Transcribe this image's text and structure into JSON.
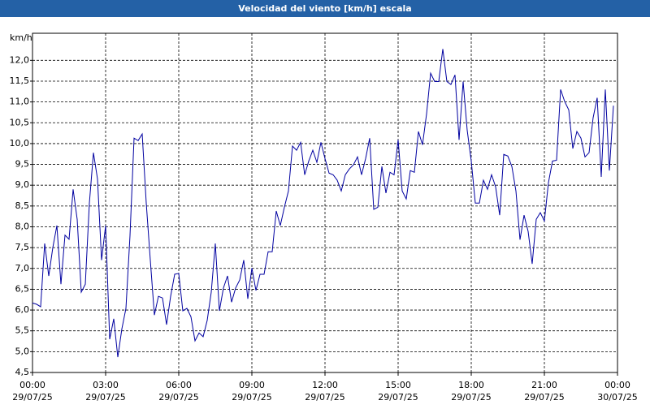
{
  "chart_data": {
    "type": "line",
    "title": "Velocidad del viento [km/h] escala",
    "y_unit": "km/h",
    "color": "#0000a0",
    "grid": true,
    "xlim": [
      0,
      1440
    ],
    "ylim": [
      4.5,
      12.65
    ],
    "xticks": [
      {
        "value": 0,
        "label": "00:00"
      },
      {
        "value": 180,
        "label": "03:00"
      },
      {
        "value": 360,
        "label": "06:00"
      },
      {
        "value": 540,
        "label": "09:00"
      },
      {
        "value": 720,
        "label": "12:00"
      },
      {
        "value": 900,
        "label": "15:00"
      },
      {
        "value": 1080,
        "label": "18:00"
      },
      {
        "value": 1260,
        "label": "21:00"
      },
      {
        "value": 1440,
        "label": "00:00"
      }
    ],
    "xtick_dates": [
      "29/07/25",
      "29/07/25",
      "29/07/25",
      "29/07/25",
      "29/07/25",
      "29/07/25",
      "29/07/25",
      "29/07/25",
      "30/07/25"
    ],
    "yticks": [
      {
        "value": 4.5,
        "label": "4,5"
      },
      {
        "value": 5,
        "label": "5,0"
      },
      {
        "value": 5.5,
        "label": "5,5"
      },
      {
        "value": 6,
        "label": "6,0"
      },
      {
        "value": 6.5,
        "label": "6,5"
      },
      {
        "value": 7,
        "label": "7,0"
      },
      {
        "value": 7.5,
        "label": "7,5"
      },
      {
        "value": 8,
        "label": "8,0"
      },
      {
        "value": 8.5,
        "label": "8,5"
      },
      {
        "value": 9,
        "label": "9,0"
      },
      {
        "value": 9.5,
        "label": "9,5"
      },
      {
        "value": 10,
        "label": "10,0"
      },
      {
        "value": 10.5,
        "label": "10,5"
      },
      {
        "value": 11,
        "label": "11,0"
      },
      {
        "value": 11.5,
        "label": "11,5"
      },
      {
        "value": 12,
        "label": "12,0"
      }
    ],
    "x": [
      0,
      10,
      20,
      30,
      40,
      50,
      60,
      70,
      80,
      90,
      100,
      110,
      120,
      130,
      140,
      150,
      160,
      170,
      180,
      190,
      200,
      210,
      220,
      230,
      240,
      250,
      260,
      270,
      280,
      290,
      300,
      310,
      320,
      330,
      340,
      350,
      360,
      370,
      380,
      390,
      400,
      410,
      420,
      430,
      440,
      450,
      460,
      470,
      480,
      490,
      500,
      510,
      520,
      530,
      540,
      550,
      560,
      570,
      580,
      590,
      600,
      610,
      620,
      630,
      640,
      650,
      660,
      670,
      680,
      690,
      700,
      710,
      720,
      730,
      740,
      750,
      760,
      770,
      780,
      790,
      800,
      810,
      820,
      830,
      840,
      850,
      860,
      870,
      880,
      890,
      900,
      910,
      920,
      930,
      940,
      950,
      960,
      970,
      980,
      990,
      1000,
      1010,
      1020,
      1030,
      1040,
      1050,
      1060,
      1070,
      1080,
      1090,
      1100,
      1110,
      1120,
      1130,
      1140,
      1150,
      1160,
      1170,
      1180,
      1190,
      1200,
      1210,
      1220,
      1230,
      1240,
      1250,
      1260,
      1270,
      1280,
      1290,
      1300,
      1310,
      1320,
      1330,
      1340,
      1350,
      1360,
      1370,
      1380,
      1390,
      1400,
      1410,
      1420,
      1430
    ],
    "values": [
      6.17,
      6.14,
      6.08,
      7.6,
      6.82,
      7.5,
      8.03,
      6.62,
      7.8,
      7.7,
      8.9,
      8.18,
      6.43,
      6.62,
      8.57,
      9.78,
      9.15,
      7.2,
      8.03,
      5.3,
      5.79,
      4.87,
      5.55,
      6.04,
      7.79,
      10.13,
      10.07,
      10.23,
      8.57,
      7.2,
      5.88,
      6.33,
      6.29,
      5.65,
      6.33,
      6.86,
      6.88,
      5.98,
      6.04,
      5.84,
      5.26,
      5.45,
      5.36,
      5.75,
      6.43,
      7.6,
      5.98,
      6.53,
      6.82,
      6.19,
      6.53,
      6.72,
      7.2,
      6.27,
      7.01,
      6.47,
      6.86,
      6.86,
      7.4,
      7.4,
      8.38,
      8.03,
      8.47,
      8.86,
      9.94,
      9.84,
      10.03,
      9.25,
      9.58,
      9.84,
      9.55,
      10.03,
      9.64,
      9.29,
      9.25,
      9.12,
      8.86,
      9.25,
      9.39,
      9.49,
      9.68,
      9.25,
      9.64,
      10.13,
      8.42,
      8.47,
      9.45,
      8.81,
      9.31,
      9.25,
      10.09,
      8.86,
      8.67,
      9.35,
      9.31,
      10.29,
      9.97,
      10.71,
      11.69,
      11.49,
      11.49,
      12.27,
      11.49,
      11.42,
      11.65,
      10.09,
      11.49,
      10.32,
      9.58,
      8.57,
      8.57,
      9.12,
      8.9,
      9.25,
      8.96,
      8.28,
      9.74,
      9.7,
      9.45,
      8.86,
      7.69,
      8.28,
      7.89,
      7.11,
      8.18,
      8.34,
      8.14,
      9.06,
      9.58,
      9.6,
      11.3,
      11.01,
      10.81,
      9.88,
      10.29,
      10.13,
      9.68,
      9.78,
      10.62,
      11.1,
      9.2,
      11.3,
      9.35,
      10.91
    ]
  }
}
